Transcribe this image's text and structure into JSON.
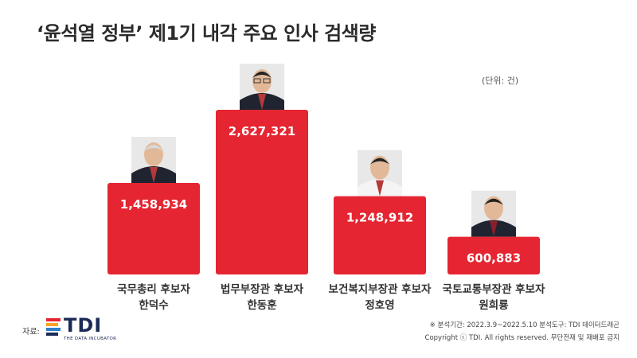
{
  "title": "‘윤석열 정부’ 제1기 내각 주요 인사 검색량",
  "unit_label": "(단위: 건)",
  "colors": {
    "bar": "#e52531",
    "title": "#2b2b2b"
  },
  "chart_data": {
    "type": "bar",
    "categories": [
      {
        "position": "국무총리 후보자",
        "name": "한덕수"
      },
      {
        "position": "법무부장관 후보자",
        "name": "한동훈"
      },
      {
        "position": "보건복지부장관 후보자",
        "name": "정호영"
      },
      {
        "position": "국토교통부장관 후보자",
        "name": "원희룡"
      }
    ],
    "values": [
      1458934,
      2627321,
      1248912,
      600883
    ],
    "value_labels": [
      "1,458,934",
      "2,627,321",
      "1,248,912",
      "600,883"
    ],
    "ylim": [
      0,
      2627321
    ],
    "grid": false,
    "legend": "none"
  },
  "source": {
    "label": "자료:",
    "logo_text": "TDI",
    "logo_subtext": "THE DATA INCUBATOR",
    "logo_colors": [
      "#e52531",
      "#f5a623",
      "#2f80c9",
      "#1b2b57"
    ]
  },
  "footnote": {
    "line1": "※ 분석기간: 2022.3.9~2022.5.10  분석도구: TDI 데이터드래곤",
    "line2": "Copyright ⓒ TDI. All rights reserved. 무단전재 및 재배포 금지"
  }
}
